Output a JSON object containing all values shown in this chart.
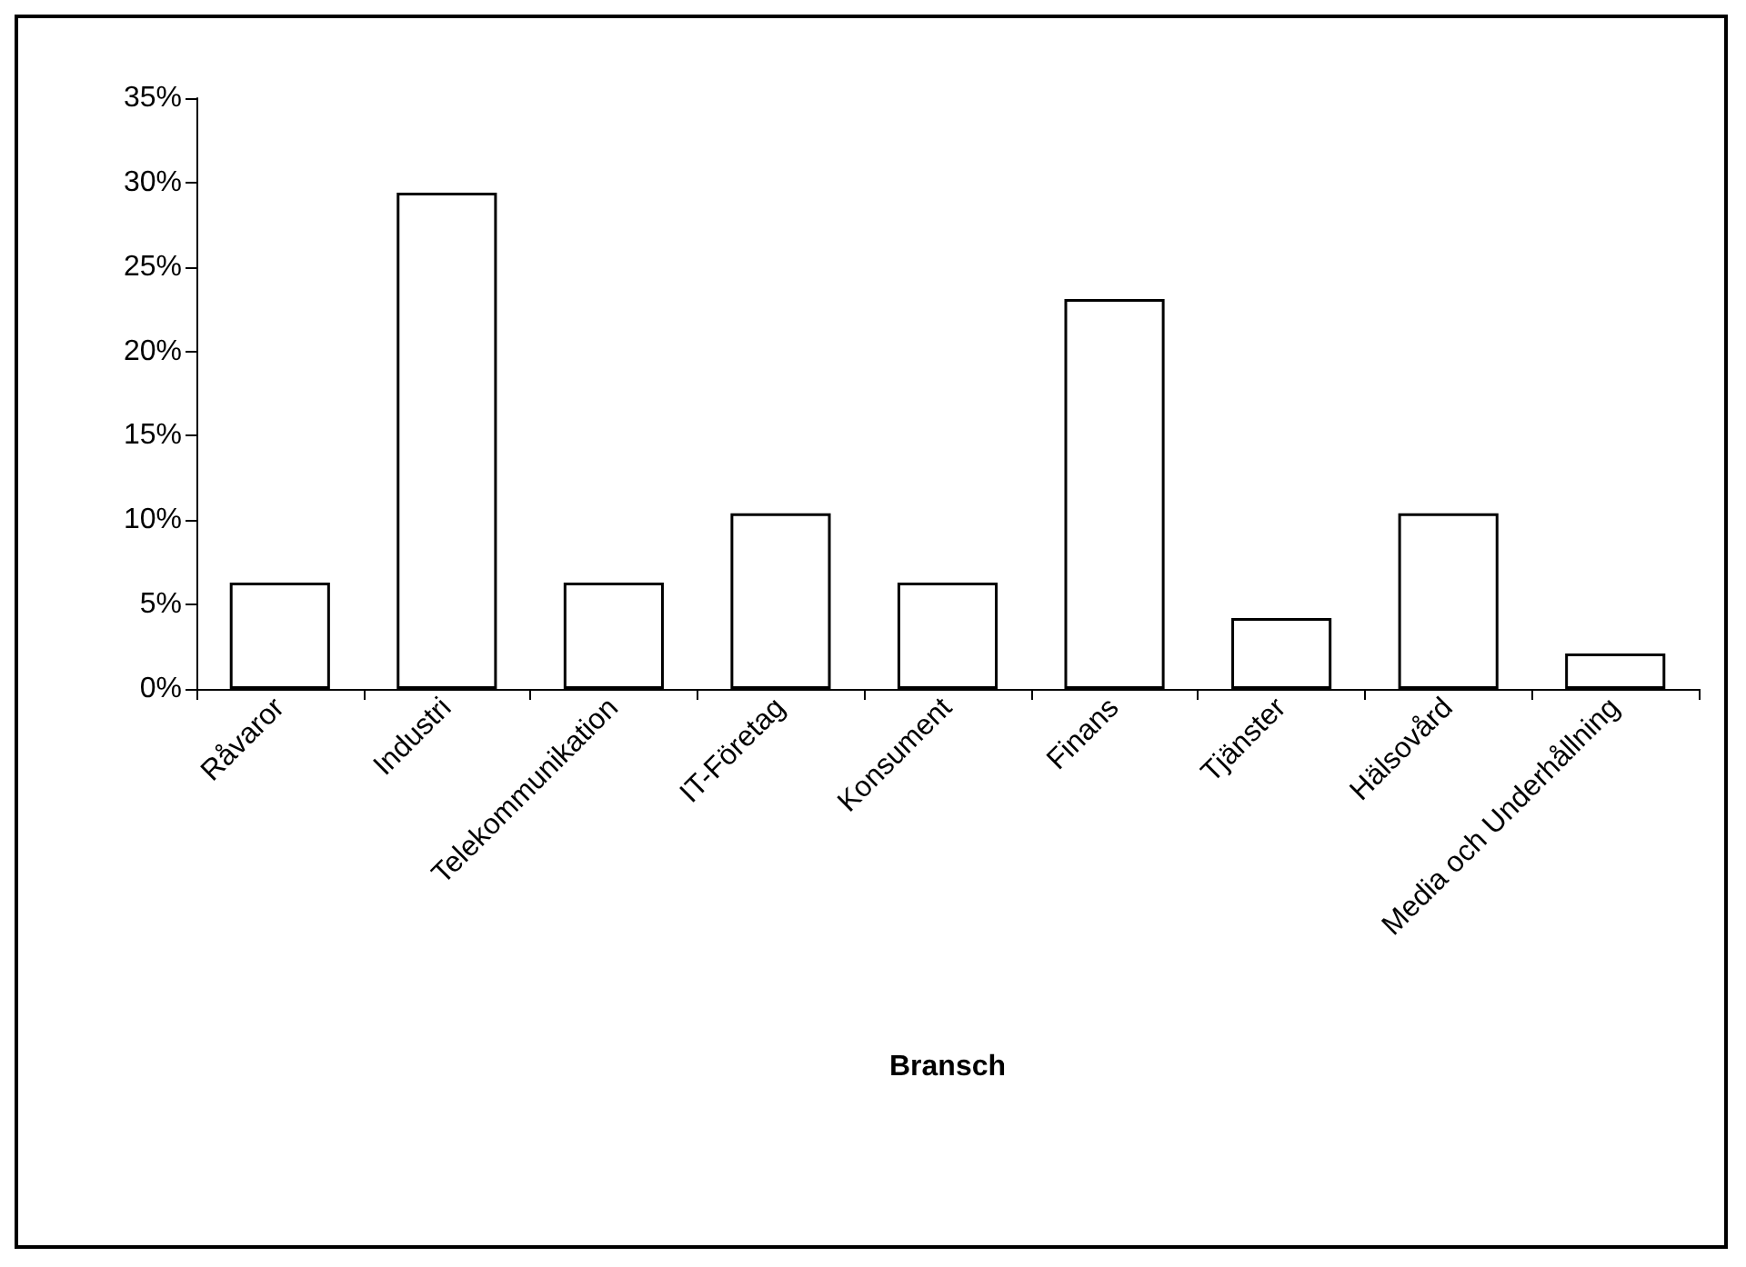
{
  "chart_data": {
    "type": "bar",
    "xlabel": "Bransch",
    "categories": [
      "Råvaror",
      "Industri",
      "Telekommunikation",
      "IT-Företag",
      "Konsument",
      "Finans",
      "Tjänster",
      "Hälsovård",
      "Media och Underhållning"
    ],
    "values": [
      6.3,
      29.4,
      6.3,
      10.4,
      6.3,
      23.1,
      4.2,
      10.4,
      2.1
    ],
    "color": "#ffffff",
    "ylim": [
      0,
      35
    ],
    "yticks": [
      {
        "value": 0,
        "label": "0%"
      },
      {
        "value": 5,
        "label": "5%"
      },
      {
        "value": 10,
        "label": "10%"
      },
      {
        "value": 15,
        "label": "15%"
      },
      {
        "value": 20,
        "label": "20%"
      },
      {
        "value": 25,
        "label": "25%"
      },
      {
        "value": 30,
        "label": "30%"
      },
      {
        "value": 35,
        "label": "35%"
      }
    ],
    "grid": false
  }
}
